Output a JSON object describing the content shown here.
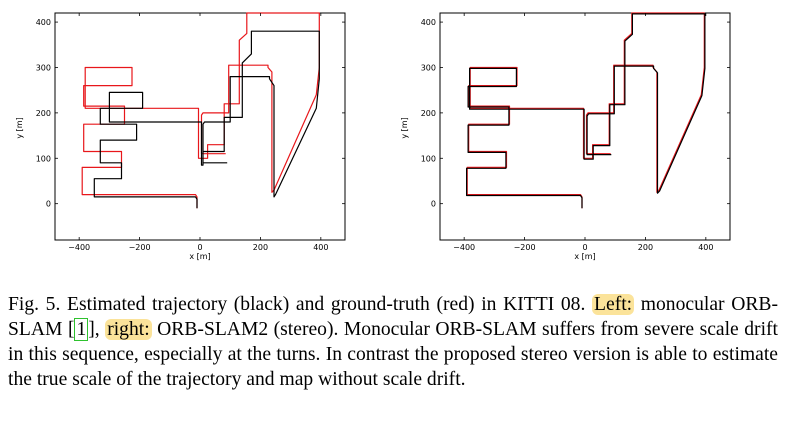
{
  "figure": {
    "panels": [
      {
        "id": "left",
        "xlabel": "x [m]",
        "ylabel": "y [m]",
        "xticks": [
          "−400",
          "−200",
          "0",
          "200",
          "400"
        ],
        "yticks": [
          "0",
          "100",
          "200",
          "300",
          "400"
        ]
      },
      {
        "id": "right",
        "xlabel": "x [m]",
        "ylabel": "y [m]",
        "xticks": [
          "−400",
          "−200",
          "0",
          "200",
          "400"
        ],
        "yticks": [
          "0",
          "100",
          "200",
          "300",
          "400"
        ]
      }
    ]
  },
  "caption": {
    "fig_label": "Fig. 5.",
    "part1": "Estimated trajectory (black) and ground-truth (red) in KITTI 08.",
    "left_label": "Left:",
    "part2": "monocular ORB-SLAM",
    "cite_open": "[",
    "cite_num": "1",
    "cite_close": "],",
    "right_label": "right:",
    "part3": "ORB-SLAM2 (stereo). Monocular ORB-SLAM suffers from severe scale drift in this sequence, especially at the turns. In contrast the proposed stereo version is able to estimate the true scale of the trajectory and map without scale drift."
  },
  "colors": {
    "estimated": "#000000",
    "ground_truth": "#e8171b",
    "highlight": "#fbe39a",
    "citation_box": "#2ec22e"
  },
  "chart_data": [
    {
      "type": "line",
      "title": "",
      "xlabel": "x [m]",
      "ylabel": "y [m]",
      "xlim": [
        -480,
        480
      ],
      "ylim": [
        -80,
        420
      ],
      "grid": false,
      "series": [
        {
          "name": "ground-truth",
          "color": "#e8171b",
          "x": [
            -10,
            -10,
            -15,
            -390,
            -390,
            -260,
            -260,
            -385,
            -385,
            -250,
            -250,
            -385,
            -385,
            -225,
            -225,
            -380,
            -380,
            -5,
            -5,
            25,
            25,
            80,
            80,
            130,
            130,
            155,
            155,
            395,
            395,
            385,
            245,
            238,
            238,
            225,
            225,
            95,
            95,
            95,
            10,
            5,
            5,
            85
          ],
          "y": [
            -10,
            15,
            20,
            20,
            80,
            80,
            115,
            115,
            175,
            175,
            215,
            215,
            260,
            260,
            300,
            300,
            210,
            210,
            100,
            100,
            130,
            130,
            220,
            220,
            360,
            375,
            420,
            420,
            300,
            240,
            30,
            25,
            290,
            300,
            305,
            305,
            220,
            200,
            200,
            195,
            110,
            110
          ]
        },
        {
          "name": "estimated",
          "color": "#000000",
          "x": [
            -10,
            -10,
            -15,
            -350,
            -350,
            -260,
            -260,
            -330,
            -330,
            -210,
            -210,
            -330,
            -330,
            -190,
            -190,
            -300,
            -300,
            5,
            5,
            10,
            10,
            80,
            80,
            140,
            140,
            170,
            170,
            395,
            395,
            385,
            250,
            245,
            245,
            230,
            230,
            100,
            100,
            100,
            15,
            10,
            10,
            90
          ],
          "y": [
            -10,
            10,
            15,
            15,
            55,
            55,
            90,
            90,
            140,
            140,
            175,
            175,
            210,
            210,
            245,
            245,
            180,
            180,
            85,
            85,
            115,
            115,
            190,
            190,
            310,
            330,
            380,
            380,
            275,
            210,
            20,
            15,
            260,
            275,
            280,
            280,
            200,
            180,
            180,
            175,
            90,
            90
          ]
        }
      ]
    },
    {
      "type": "line",
      "title": "",
      "xlabel": "x [m]",
      "ylabel": "y [m]",
      "xlim": [
        -480,
        480
      ],
      "ylim": [
        -80,
        420
      ],
      "grid": false,
      "series": [
        {
          "name": "ground-truth",
          "color": "#e8171b",
          "x": [
            -10,
            -10,
            -15,
            -390,
            -390,
            -260,
            -260,
            -385,
            -385,
            -250,
            -250,
            -385,
            -385,
            -225,
            -225,
            -380,
            -380,
            -5,
            -5,
            25,
            25,
            80,
            80,
            130,
            130,
            155,
            155,
            395,
            395,
            385,
            245,
            238,
            238,
            225,
            225,
            95,
            95,
            95,
            10,
            5,
            5,
            85
          ],
          "y": [
            -10,
            15,
            20,
            20,
            80,
            80,
            115,
            115,
            175,
            175,
            215,
            215,
            260,
            260,
            300,
            300,
            210,
            210,
            100,
            100,
            130,
            130,
            220,
            220,
            360,
            375,
            420,
            420,
            300,
            240,
            30,
            25,
            290,
            300,
            305,
            305,
            220,
            200,
            200,
            195,
            110,
            110
          ]
        },
        {
          "name": "estimated",
          "color": "#000000",
          "x": [
            -10,
            -10,
            -15,
            -392,
            -392,
            -262,
            -262,
            -387,
            -387,
            -252,
            -252,
            -387,
            -387,
            -227,
            -227,
            -382,
            -382,
            -3,
            -3,
            27,
            27,
            82,
            82,
            132,
            132,
            157,
            157,
            397,
            397,
            387,
            247,
            240,
            240,
            227,
            227,
            97,
            97,
            97,
            12,
            7,
            7,
            87
          ],
          "y": [
            -10,
            13,
            18,
            18,
            78,
            78,
            113,
            113,
            173,
            173,
            213,
            213,
            258,
            258,
            298,
            298,
            208,
            208,
            98,
            98,
            128,
            128,
            218,
            218,
            358,
            373,
            418,
            418,
            298,
            238,
            28,
            23,
            288,
            298,
            303,
            303,
            218,
            198,
            198,
            193,
            108,
            108
          ]
        }
      ]
    }
  ]
}
